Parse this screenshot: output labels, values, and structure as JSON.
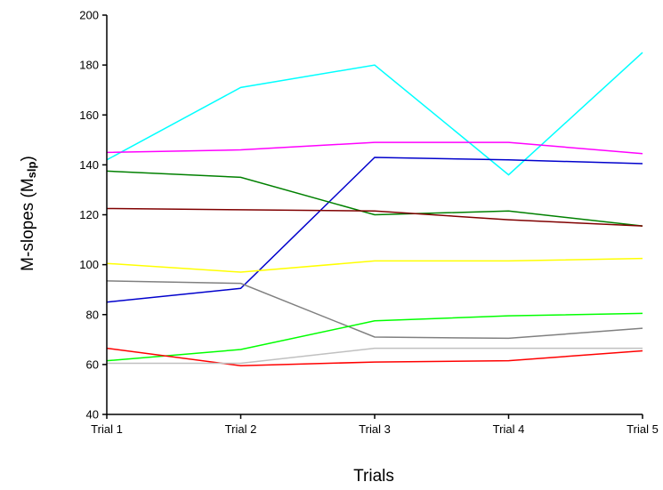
{
  "chart_data": {
    "type": "line",
    "x": [
      "Trial 1",
      "Trial 2",
      "Trial 3",
      "Trial 4",
      "Trial 5"
    ],
    "xlabel": "Trials",
    "ylabel": "M-slopes (M",
    "ylabel_sub": "slp",
    "ylabel_close": ")",
    "ylim": [
      40,
      200
    ],
    "yticks": [
      40,
      60,
      80,
      100,
      120,
      140,
      160,
      180,
      200
    ],
    "grid": false,
    "legend": "none",
    "series": [
      {
        "color": "#00ffff",
        "values": [
          142,
          171,
          180,
          136,
          185
        ]
      },
      {
        "color": "#ff00ff",
        "values": [
          145,
          146,
          149,
          149,
          144.5
        ]
      },
      {
        "color": "#0000cc",
        "values": [
          85,
          90.5,
          143,
          142,
          140.5
        ]
      },
      {
        "color": "#008000",
        "values": [
          137.5,
          135,
          120,
          121.5,
          115.5
        ]
      },
      {
        "color": "#800000",
        "values": [
          122.5,
          122,
          121.5,
          118,
          115.5
        ]
      },
      {
        "color": "#ffff00",
        "values": [
          100.5,
          97,
          101.5,
          101.5,
          102.5
        ]
      },
      {
        "color": "#808080",
        "values": [
          93.5,
          92.5,
          71,
          70.5,
          74.5
        ]
      },
      {
        "color": "#00ff00",
        "values": [
          61.5,
          66,
          77.5,
          79.5,
          80.5
        ]
      },
      {
        "color": "#ff0000",
        "values": [
          66.5,
          59.5,
          61,
          61.5,
          65.5
        ]
      },
      {
        "color": "#c0c0c0",
        "values": [
          60.5,
          60.5,
          66.5,
          66.5,
          66.5
        ]
      }
    ]
  }
}
